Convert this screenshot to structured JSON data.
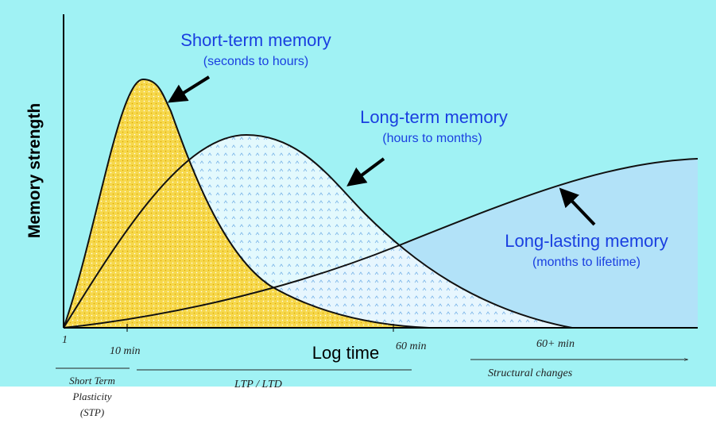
{
  "axes": {
    "y_label": "Memory strength",
    "x_label": "Log time"
  },
  "curves": [
    {
      "label": "Short-term memory",
      "sublabel": "(seconds to hours)"
    },
    {
      "label": "Long-term memory",
      "sublabel": "(hours to months)"
    },
    {
      "label": "Long-lasting memory",
      "sublabel": "(months to lifetime)"
    }
  ],
  "time_marks": [
    "1",
    "10 min",
    "60 min",
    "60+ min"
  ],
  "phases": [
    "Short Term Plasticity (STP)",
    "LTP / LTD",
    "Structural changes"
  ]
}
